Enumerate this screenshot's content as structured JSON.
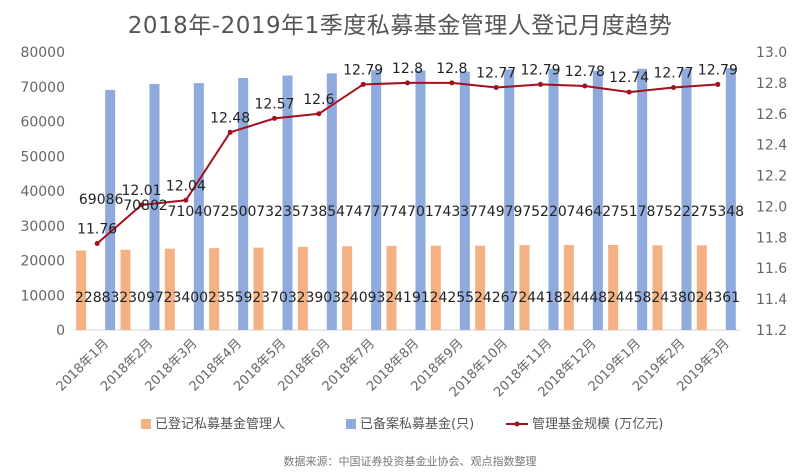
{
  "chart_data": {
    "type": "bar",
    "title": "2018年-2019年1季度私募基金管理人登记月度趋势",
    "categories": [
      "2018年1月",
      "2018年2月",
      "2018年3月",
      "2018年4月",
      "2018年5月",
      "2018年6月",
      "2018年7月",
      "2018年8月",
      "2018年9月",
      "2018年10月",
      "2018年11月",
      "2018年12月",
      "2019年1月",
      "2019年2月",
      "2019年3月"
    ],
    "series": [
      {
        "name": "已登记私募基金管理人",
        "type": "bar",
        "axis": "left",
        "color": "#F4B183",
        "values": [
          22883,
          23097,
          23400,
          23559,
          23703,
          23903,
          24093,
          24191,
          24255,
          24267,
          24418,
          24448,
          24458,
          24380,
          24361
        ]
      },
      {
        "name": "已备案私募基金(只)",
        "type": "bar",
        "axis": "left",
        "color": "#8FAADC",
        "values": [
          69086,
          70802,
          71040,
          72500,
          73235,
          73854,
          74777,
          74701,
          74337,
          74979,
          75220,
          74642,
          75178,
          75222,
          75348
        ]
      },
      {
        "name": "管理基金规模 (万亿元)",
        "type": "line",
        "axis": "right",
        "color": "#A50F1E",
        "values": [
          11.76,
          12.01,
          12.04,
          12.48,
          12.57,
          12.6,
          12.79,
          12.8,
          12.8,
          12.77,
          12.79,
          12.78,
          12.74,
          12.77,
          12.79
        ]
      }
    ],
    "y_left": {
      "min": 0,
      "max": 80000,
      "ticks": [
        "0",
        "10000",
        "20000",
        "30000",
        "40000",
        "50000",
        "60000",
        "70000",
        "80000"
      ]
    },
    "y_right": {
      "min": 11.2,
      "max": 13.0,
      "ticks": [
        "11.2",
        "11.4",
        "11.6",
        "11.8",
        "12.0",
        "12.2",
        "12.4",
        "12.6",
        "12.8",
        "13.0"
      ]
    },
    "grid": false,
    "legend_position": "bottom",
    "source": "数据来源：中国证券投资基金业协会、观点指数整理"
  }
}
